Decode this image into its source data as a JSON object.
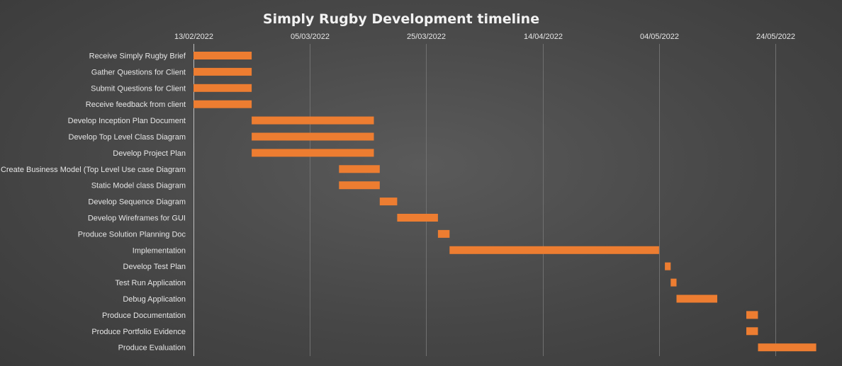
{
  "chart_data": {
    "type": "bar",
    "orientation": "horizontal",
    "title": "Simply Rugby Development timeline",
    "x_axis_position": "top",
    "xlim": [
      "2022-02-13",
      "2022-06-02"
    ],
    "x_ticks": [
      "13/02/2022",
      "05/03/2022",
      "25/03/2022",
      "14/04/2022",
      "04/05/2022",
      "24/05/2022"
    ],
    "x_tick_dates": [
      "2022-02-13",
      "2022-03-05",
      "2022-03-25",
      "2022-04-14",
      "2022-05-04",
      "2022-05-24"
    ],
    "grid": "vertical",
    "bar_color": "#ed7d31",
    "tasks": [
      {
        "label": "Receive Simply Rugby Brief",
        "start": "2022-02-13",
        "end": "2022-02-23"
      },
      {
        "label": "Gather Questions for Client",
        "start": "2022-02-13",
        "end": "2022-02-23"
      },
      {
        "label": "Submit Questions for Client",
        "start": "2022-02-13",
        "end": "2022-02-23"
      },
      {
        "label": "Receive feedback from client",
        "start": "2022-02-13",
        "end": "2022-02-23"
      },
      {
        "label": "Develop Inception Plan Document",
        "start": "2022-02-23",
        "end": "2022-03-16"
      },
      {
        "label": "Develop Top Level Class Diagram",
        "start": "2022-02-23",
        "end": "2022-03-16"
      },
      {
        "label": "Develop Project Plan",
        "start": "2022-02-23",
        "end": "2022-03-16"
      },
      {
        "label": "Create Business Model (Top Level Use case Diagram",
        "start": "2022-03-10",
        "end": "2022-03-17"
      },
      {
        "label": "Static Model class Diagram",
        "start": "2022-03-10",
        "end": "2022-03-17"
      },
      {
        "label": "Develop Sequence Diagram",
        "start": "2022-03-17",
        "end": "2022-03-20"
      },
      {
        "label": "Develop Wireframes for GUI",
        "start": "2022-03-20",
        "end": "2022-03-27"
      },
      {
        "label": "Produce Solution Planning Doc",
        "start": "2022-03-27",
        "end": "2022-03-29"
      },
      {
        "label": "Implementation",
        "start": "2022-03-29",
        "end": "2022-05-04"
      },
      {
        "label": "Develop Test Plan",
        "start": "2022-05-05",
        "end": "2022-05-06"
      },
      {
        "label": "Test Run Application ",
        "start": "2022-05-06",
        "end": "2022-05-07"
      },
      {
        "label": "Debug Application",
        "start": "2022-05-07",
        "end": "2022-05-14"
      },
      {
        "label": "Produce Documentation",
        "start": "2022-05-19",
        "end": "2022-05-21"
      },
      {
        "label": "Produce Portfolio Evidence",
        "start": "2022-05-19",
        "end": "2022-05-21"
      },
      {
        "label": "Produce Evaluation",
        "start": "2022-05-21",
        "end": "2022-05-31"
      }
    ]
  }
}
